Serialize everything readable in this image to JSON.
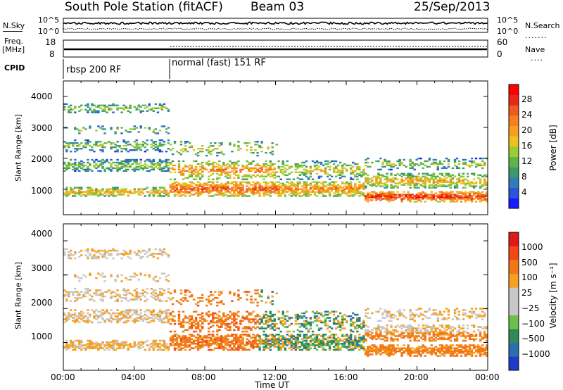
{
  "header": {
    "station": "South Pole Station (fitACF)",
    "beam": "Beam 03",
    "date": "25/Sep/2013"
  },
  "side_labels": {
    "nsky": "N.Sky",
    "freq": "Freq.",
    "freq_unit": "[MHz]",
    "cpid": "CPID",
    "nsearch": "N.Search",
    "nave": "Nave"
  },
  "summary_ticks": {
    "noise_left": [
      "10^5",
      "10^0"
    ],
    "noise_right": [
      "10^5",
      "10^0"
    ],
    "freq_left": [
      "18",
      "8"
    ],
    "nave_right": [
      "60",
      "0"
    ]
  },
  "cpid_segments": [
    {
      "label": "rbsp 200 RF",
      "start_hour": 0,
      "end_hour": 6
    },
    {
      "label": "normal (fast) 151 RF",
      "start_hour": 6,
      "end_hour": 24
    }
  ],
  "chart_data": [
    {
      "type": "heatmap",
      "title": "",
      "xlabel": "Time UT",
      "ylabel": "Slant Range [km]",
      "x_ticks": [
        "00:00",
        "04:00",
        "08:00",
        "12:00",
        "16:00",
        "20:00",
        "00:00"
      ],
      "y_ticks": [
        "1000",
        "2000",
        "3000",
        "4000"
      ],
      "xlim_hours": [
        0,
        24
      ],
      "ylim_km": [
        180,
        4500
      ],
      "colorbar": {
        "label": "Power [dB]",
        "ticks": [
          "4",
          "8",
          "12",
          "16",
          "20",
          "24",
          "28"
        ],
        "range": [
          0,
          30
        ],
        "colors": [
          "#1a1aff",
          "#2a55d8",
          "#2f7fb4",
          "#3a9a6a",
          "#5fb34a",
          "#9acd32",
          "#f0c020",
          "#f5a020",
          "#f58020",
          "#f05a20",
          "#e82818",
          "#ff0000"
        ]
      }
    },
    {
      "type": "heatmap",
      "title": "",
      "xlabel": "Time UT",
      "ylabel": "Slant Range [km]",
      "x_ticks": [
        "00:00",
        "04:00",
        "08:00",
        "12:00",
        "16:00",
        "20:00",
        "00:00"
      ],
      "y_ticks": [
        "1000",
        "2000",
        "3000",
        "4000"
      ],
      "xlim_hours": [
        0,
        24
      ],
      "ylim_km": [
        180,
        4500
      ],
      "colorbar": {
        "label": "Velocity [m s⁻¹]",
        "ticks": [
          "1000",
          "500",
          "100",
          "25",
          "−25",
          "−100",
          "−500",
          "−1000"
        ],
        "colors": [
          "#1e3cc8",
          "#2a6fae",
          "#2e8b57",
          "#6cc04a",
          "#c8c8c8",
          "#c8c8c8",
          "#f5a020",
          "#f07818",
          "#f04818",
          "#e01818"
        ]
      }
    }
  ]
}
